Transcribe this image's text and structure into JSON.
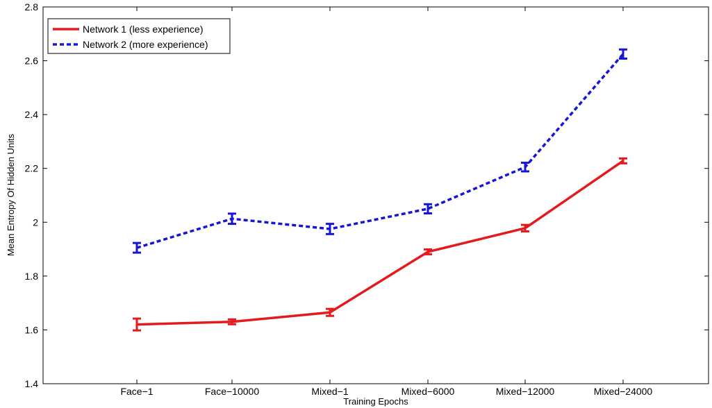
{
  "chart_data": {
    "type": "line",
    "title": "",
    "xlabel": "Training Epochs",
    "ylabel": "Mean Entropy Of Hidden Units",
    "categories": [
      "Face−1",
      "Face−10000",
      "Mixed−1",
      "Mixed−6000",
      "Mixed−12000",
      "Mixed−24000"
    ],
    "ylim": [
      1.4,
      2.8
    ],
    "yticks": [
      "1.4",
      "1.6",
      "1.8",
      "2",
      "2.2",
      "2.4",
      "2.6",
      "2.8"
    ],
    "grid": false,
    "legend_position": "top-left",
    "series": [
      {
        "name": "Network 1 (less experience)",
        "color": "#e41a1c",
        "line_style": "solid",
        "values": [
          1.62,
          1.63,
          1.665,
          1.89,
          1.978,
          2.228
        ],
        "error": [
          0.022,
          0.009,
          0.013,
          0.009,
          0.012,
          0.009
        ]
      },
      {
        "name": "Network 2 (more experience)",
        "color": "#1515d6",
        "line_style": "dashed",
        "values": [
          1.905,
          2.013,
          1.975,
          2.05,
          2.205,
          2.625
        ],
        "error": [
          0.018,
          0.019,
          0.019,
          0.017,
          0.016,
          0.017
        ]
      }
    ]
  }
}
